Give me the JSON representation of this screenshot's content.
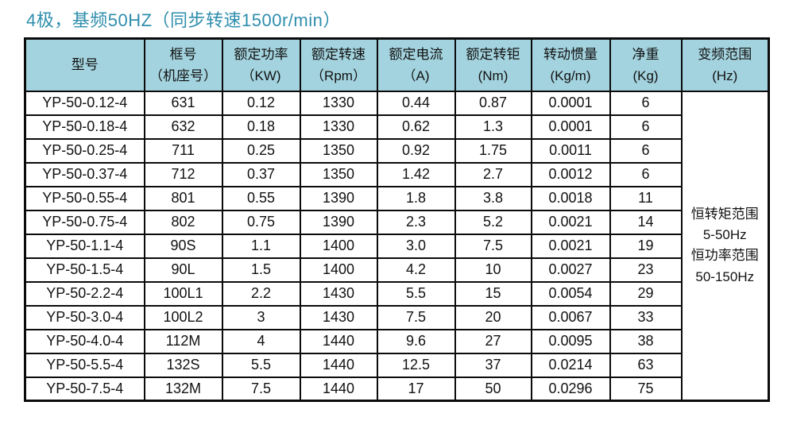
{
  "title": "4极，基频50HZ（同步转速1500r/min）",
  "colors": {
    "title_text": "#2e8ead",
    "header_bg": "#a3d3de",
    "border": "#0b0b0b",
    "text": "#111111",
    "body_bg": "#ffffff"
  },
  "table": {
    "columns": [
      {
        "id": "model",
        "line1": "型号",
        "line2": ""
      },
      {
        "id": "frame",
        "line1": "框号",
        "line2": "（机座号）"
      },
      {
        "id": "rated-power",
        "line1": "额定功率",
        "line2": "（KW)"
      },
      {
        "id": "rated-speed",
        "line1": "额定转速",
        "line2": "（Rpm）"
      },
      {
        "id": "rated-current",
        "line1": "额定电流",
        "line2": "（A)"
      },
      {
        "id": "rated-torque",
        "line1": "额定转钜",
        "line2": "(Nm)"
      },
      {
        "id": "inertia",
        "line1": "转动惯量",
        "line2": "(Kg/m)"
      },
      {
        "id": "net-weight",
        "line1": "净重",
        "line2": "(Kg)"
      },
      {
        "id": "freq-range",
        "line1": "变频范围",
        "line2": "(Hz)"
      }
    ],
    "rows": [
      [
        "YP-50-0.12-4",
        "631",
        "0.12",
        "1330",
        "0.44",
        "0.87",
        "0.0001",
        "6"
      ],
      [
        "YP-50-0.18-4",
        "632",
        "0.18",
        "1330",
        "0.62",
        "1.3",
        "0.0001",
        "6"
      ],
      [
        "YP-50-0.25-4",
        "711",
        "0.25",
        "1350",
        "0.92",
        "1.75",
        "0.0011",
        "6"
      ],
      [
        "YP-50-0.37-4",
        "712",
        "0.37",
        "1350",
        "1.42",
        "2.7",
        "0.0012",
        "6"
      ],
      [
        "YP-50-0.55-4",
        "801",
        "0.55",
        "1390",
        "1.8",
        "3.8",
        "0.0018",
        "11"
      ],
      [
        "YP-50-0.75-4",
        "802",
        "0.75",
        "1390",
        "2.3",
        "5.2",
        "0.0021",
        "14"
      ],
      [
        "YP-50-1.1-4",
        "90S",
        "1.1",
        "1400",
        "3.0",
        "7.5",
        "0.0021",
        "19"
      ],
      [
        "YP-50-1.5-4",
        "90L",
        "1.5",
        "1400",
        "4.2",
        "10",
        "0.0027",
        "23"
      ],
      [
        "YP-50-2.2-4",
        "100L1",
        "2.2",
        "1430",
        "5.5",
        "15",
        "0.0054",
        "29"
      ],
      [
        "YP-50-3.0-4",
        "100L2",
        "3",
        "1430",
        "7.5",
        "20",
        "0.0067",
        "33"
      ],
      [
        "YP-50-4.0-4",
        "112M",
        "4",
        "1440",
        "9.6",
        "27",
        "0.0095",
        "38"
      ],
      [
        "YP-50-5.5-4",
        "132S",
        "5.5",
        "1440",
        "12.5",
        "37",
        "0.0214",
        "63"
      ],
      [
        "YP-50-7.5-4",
        "132M",
        "7.5",
        "1440",
        "17",
        "50",
        "0.0296",
        "75"
      ]
    ],
    "freq_range_cell": {
      "lines": [
        "恒转矩范围",
        "5-50Hz",
        "恒功率范围",
        "50-150Hz"
      ]
    }
  }
}
